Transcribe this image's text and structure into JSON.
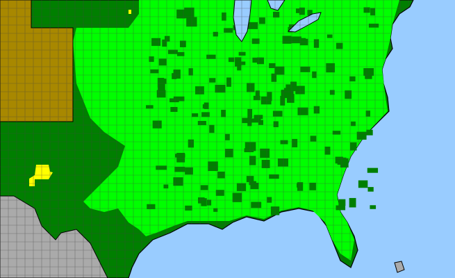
{
  "map": {
    "colors": {
      "ocean": "#99ccff",
      "land_present": "#007f00",
      "land_native": "#00ff00",
      "region_tan": "#a88800",
      "region_yellow": "#ffff00",
      "foreign_land": "#aaaaaa",
      "county_border": "#444444",
      "state_border": "#000000"
    }
  }
}
